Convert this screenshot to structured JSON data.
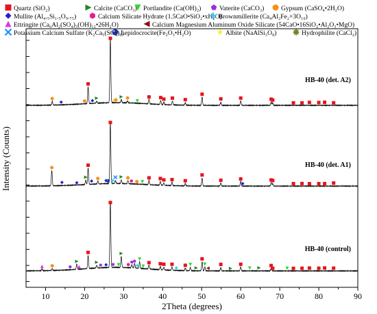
{
  "chart_data": {
    "type": "line",
    "title": "",
    "xlabel": "2Theta (degrees)",
    "ylabel": "Intensity (Counts)",
    "xlim": [
      5,
      90
    ],
    "xticks": [
      10,
      20,
      30,
      40,
      50,
      60,
      70,
      80,
      90
    ],
    "grid": false,
    "legend": {
      "position": "top"
    },
    "legend_entries": [
      {
        "label": "Quartz (SiO₂)",
        "marker": "square",
        "color": "#e8141b"
      },
      {
        "label": "Calcite (CaCO₃)",
        "marker": "triangle-right",
        "color": "#1d8a20"
      },
      {
        "label": "Portlandite (Ca(OH)₂)",
        "marker": "triangle-down",
        "color": "#33d633"
      },
      {
        "label": "Vaterite (CaCO₃)",
        "marker": "pentagon",
        "color": "#9b30d9"
      },
      {
        "label": "Gypsum (CaSO₄•2H₂O)",
        "marker": "circle",
        "color": "#f5901e"
      },
      {
        "label": "Mullite (Al₄.₅Si₁.₅O₉.₇₅)",
        "marker": "diamond",
        "color": "#1f1fd1"
      },
      {
        "label": "Calcium Silicate Hydrate (1.5CaO•SiO₂•xH₂O)",
        "marker": "hexagon",
        "color": "#e61d8c"
      },
      {
        "label": "Brownmillerite (Ca₄Al₂Fe₂+3O₁₀)",
        "marker": "plus",
        "color": "#28c8f0"
      },
      {
        "label": "Ettringite (Ca₆Al₂(SO₄)₃(OH)₁₂•26H₂O)",
        "marker": "triangle-up",
        "color": "#e62ee6"
      },
      {
        "label": "Calcium Magnesium Aluminum Oxide Silicate (54CaO•16SiO₂•Al₂O₃•MgO)",
        "marker": "triangle-left",
        "color": "#8b1010"
      },
      {
        "label": "Potassium Calcium Sulfate (K₂Ca₅(SO₄)₆)",
        "marker": "x",
        "color": "#1e90ff"
      },
      {
        "label": "Lepidocrocite(Fe₂O₃•H₂O)",
        "marker": "sphere",
        "color": "#1a2f9e"
      },
      {
        "label": "Albite (NaAlSi₃O₈)",
        "marker": "star",
        "color": "#f2f21a"
      },
      {
        "label": "Hydrophilite (CaCl₂)",
        "marker": "asterisk",
        "color": "#7a7a1e"
      }
    ],
    "series": [
      {
        "name": "HB-40 (det. A2)",
        "baseline_level": 0.07,
        "peaks": [
          {
            "x": 11.7,
            "h": 0.06
          },
          {
            "x": 20.9,
            "h": 0.26
          },
          {
            "x": 23.1,
            "h": 0.03
          },
          {
            "x": 26.6,
            "h": 1.0
          },
          {
            "x": 29.4,
            "h": 0.05
          },
          {
            "x": 31.0,
            "h": 0.03
          },
          {
            "x": 36.5,
            "h": 0.07
          },
          {
            "x": 39.5,
            "h": 0.06
          },
          {
            "x": 40.3,
            "h": 0.04
          },
          {
            "x": 42.5,
            "h": 0.06
          },
          {
            "x": 45.8,
            "h": 0.04
          },
          {
            "x": 50.1,
            "h": 0.13
          },
          {
            "x": 54.9,
            "h": 0.05
          },
          {
            "x": 60.0,
            "h": 0.07
          },
          {
            "x": 67.8,
            "h": 0.05
          },
          {
            "x": 68.2,
            "h": 0.04
          }
        ],
        "markers": [
          {
            "x": 11.7,
            "m": 4
          },
          {
            "x": 14.0,
            "m": 5
          },
          {
            "x": 20.0,
            "m": 4
          },
          {
            "x": 20.9,
            "m": 0
          },
          {
            "x": 22.0,
            "m": 5
          },
          {
            "x": 23.1,
            "m": 1
          },
          {
            "x": 26.6,
            "m": 0
          },
          {
            "x": 27.4,
            "m": 12
          },
          {
            "x": 28.0,
            "m": 4
          },
          {
            "x": 29.4,
            "m": 1
          },
          {
            "x": 31.0,
            "m": 4
          },
          {
            "x": 33.5,
            "m": 2
          },
          {
            "x": 36.5,
            "m": 0
          },
          {
            "x": 39.5,
            "m": 0
          },
          {
            "x": 40.3,
            "m": 0
          },
          {
            "x": 42.5,
            "m": 0
          },
          {
            "x": 45.8,
            "m": 0
          },
          {
            "x": 50.1,
            "m": 0
          },
          {
            "x": 54.9,
            "m": 0
          },
          {
            "x": 60.0,
            "m": 0
          },
          {
            "x": 67.8,
            "m": 0
          },
          {
            "x": 68.2,
            "m": 0
          },
          {
            "x": 73.5,
            "m": 0
          },
          {
            "x": 75.7,
            "m": 0
          },
          {
            "x": 77.6,
            "m": 0
          },
          {
            "x": 80.0,
            "m": 0
          },
          {
            "x": 81.5,
            "m": 0
          },
          {
            "x": 83.8,
            "m": 0
          }
        ]
      },
      {
        "name": "HB-40 (det. A1)",
        "baseline_level": 0.07,
        "peaks": [
          {
            "x": 11.6,
            "h": 0.25
          },
          {
            "x": 20.3,
            "h": 0.07
          },
          {
            "x": 20.9,
            "h": 0.27
          },
          {
            "x": 23.4,
            "h": 0.05
          },
          {
            "x": 26.6,
            "h": 1.0
          },
          {
            "x": 27.9,
            "h": 0.05
          },
          {
            "x": 29.4,
            "h": 0.06
          },
          {
            "x": 31.1,
            "h": 0.05
          },
          {
            "x": 36.5,
            "h": 0.07
          },
          {
            "x": 39.4,
            "h": 0.06
          },
          {
            "x": 40.3,
            "h": 0.04
          },
          {
            "x": 42.4,
            "h": 0.06
          },
          {
            "x": 45.8,
            "h": 0.04
          },
          {
            "x": 50.1,
            "h": 0.13
          },
          {
            "x": 54.9,
            "h": 0.05
          },
          {
            "x": 60.0,
            "h": 0.08
          },
          {
            "x": 67.8,
            "h": 0.06
          },
          {
            "x": 68.2,
            "h": 0.04
          }
        ],
        "markers": [
          {
            "x": 11.6,
            "m": 4
          },
          {
            "x": 14.2,
            "m": 5
          },
          {
            "x": 18.0,
            "m": 5
          },
          {
            "x": 20.3,
            "m": 1
          },
          {
            "x": 20.9,
            "m": 0
          },
          {
            "x": 21.8,
            "m": 5
          },
          {
            "x": 23.4,
            "m": 4
          },
          {
            "x": 25.5,
            "m": 5
          },
          {
            "x": 26.0,
            "m": 11
          },
          {
            "x": 26.6,
            "m": 0
          },
          {
            "x": 27.2,
            "m": 7
          },
          {
            "x": 27.9,
            "m": 10
          },
          {
            "x": 29.4,
            "m": 1
          },
          {
            "x": 31.1,
            "m": 4
          },
          {
            "x": 32.0,
            "m": 6
          },
          {
            "x": 33.4,
            "m": 4
          },
          {
            "x": 34.8,
            "m": 2
          },
          {
            "x": 36.5,
            "m": 0
          },
          {
            "x": 39.4,
            "m": 0
          },
          {
            "x": 40.3,
            "m": 0
          },
          {
            "x": 42.4,
            "m": 0
          },
          {
            "x": 45.8,
            "m": 0
          },
          {
            "x": 50.1,
            "m": 0
          },
          {
            "x": 54.9,
            "m": 0
          },
          {
            "x": 60.0,
            "m": 0
          },
          {
            "x": 60.5,
            "m": 5
          },
          {
            "x": 67.8,
            "m": 0
          },
          {
            "x": 68.2,
            "m": 0
          },
          {
            "x": 73.5,
            "m": 0
          },
          {
            "x": 75.7,
            "m": 0
          },
          {
            "x": 77.6,
            "m": 0
          },
          {
            "x": 80.0,
            "m": 0
          },
          {
            "x": 81.5,
            "m": 0
          },
          {
            "x": 83.8,
            "m": 0
          }
        ]
      },
      {
        "name": "HB-40 (control)",
        "baseline_level": 0.09,
        "peaks": [
          {
            "x": 9.1,
            "h": 0.03
          },
          {
            "x": 11.7,
            "h": 0.03
          },
          {
            "x": 18.0,
            "h": 0.08
          },
          {
            "x": 20.9,
            "h": 0.2
          },
          {
            "x": 23.1,
            "h": 0.04
          },
          {
            "x": 26.6,
            "h": 1.0
          },
          {
            "x": 29.4,
            "h": 0.17
          },
          {
            "x": 32.1,
            "h": 0.05
          },
          {
            "x": 32.8,
            "h": 0.07
          },
          {
            "x": 34.1,
            "h": 0.1
          },
          {
            "x": 36.5,
            "h": 0.06
          },
          {
            "x": 39.4,
            "h": 0.05
          },
          {
            "x": 40.3,
            "h": 0.04
          },
          {
            "x": 42.4,
            "h": 0.05
          },
          {
            "x": 45.8,
            "h": 0.04
          },
          {
            "x": 47.1,
            "h": 0.05
          },
          {
            "x": 50.1,
            "h": 0.14
          },
          {
            "x": 50.8,
            "h": 0.06
          },
          {
            "x": 54.9,
            "h": 0.05
          },
          {
            "x": 60.0,
            "h": 0.06
          },
          {
            "x": 67.8,
            "h": 0.04
          }
        ],
        "markers": [
          {
            "x": 9.1,
            "m": 8
          },
          {
            "x": 11.7,
            "m": 4
          },
          {
            "x": 16.3,
            "m": 3
          },
          {
            "x": 18.0,
            "m": 1
          },
          {
            "x": 18.6,
            "m": 8
          },
          {
            "x": 20.9,
            "m": 0
          },
          {
            "x": 23.1,
            "m": 1
          },
          {
            "x": 24.1,
            "m": 3
          },
          {
            "x": 25.5,
            "m": 5
          },
          {
            "x": 26.6,
            "m": 0
          },
          {
            "x": 27.3,
            "m": 3
          },
          {
            "x": 28.7,
            "m": 2
          },
          {
            "x": 29.4,
            "m": 1
          },
          {
            "x": 31.2,
            "m": 6
          },
          {
            "x": 32.1,
            "m": 3
          },
          {
            "x": 32.8,
            "m": 3
          },
          {
            "x": 33.5,
            "m": 7
          },
          {
            "x": 34.1,
            "m": 2
          },
          {
            "x": 35.0,
            "m": 2
          },
          {
            "x": 36.5,
            "m": 0
          },
          {
            "x": 39.4,
            "m": 0
          },
          {
            "x": 40.3,
            "m": 0
          },
          {
            "x": 42.4,
            "m": 0
          },
          {
            "x": 43.5,
            "m": 7
          },
          {
            "x": 45.8,
            "m": 0
          },
          {
            "x": 47.1,
            "m": 2
          },
          {
            "x": 48.6,
            "m": 1
          },
          {
            "x": 50.1,
            "m": 0
          },
          {
            "x": 50.8,
            "m": 2
          },
          {
            "x": 51.6,
            "m": 9
          },
          {
            "x": 54.9,
            "m": 0
          },
          {
            "x": 57.4,
            "m": 1
          },
          {
            "x": 60.0,
            "m": 0
          },
          {
            "x": 62.3,
            "m": 2
          },
          {
            "x": 64.7,
            "m": 1
          },
          {
            "x": 67.8,
            "m": 0
          },
          {
            "x": 68.2,
            "m": 0
          },
          {
            "x": 71.9,
            "m": 2
          },
          {
            "x": 73.5,
            "m": 0
          },
          {
            "x": 75.7,
            "m": 0
          },
          {
            "x": 77.6,
            "m": 0
          },
          {
            "x": 80.0,
            "m": 0
          },
          {
            "x": 81.5,
            "m": 0
          },
          {
            "x": 83.8,
            "m": 0
          }
        ]
      }
    ]
  }
}
